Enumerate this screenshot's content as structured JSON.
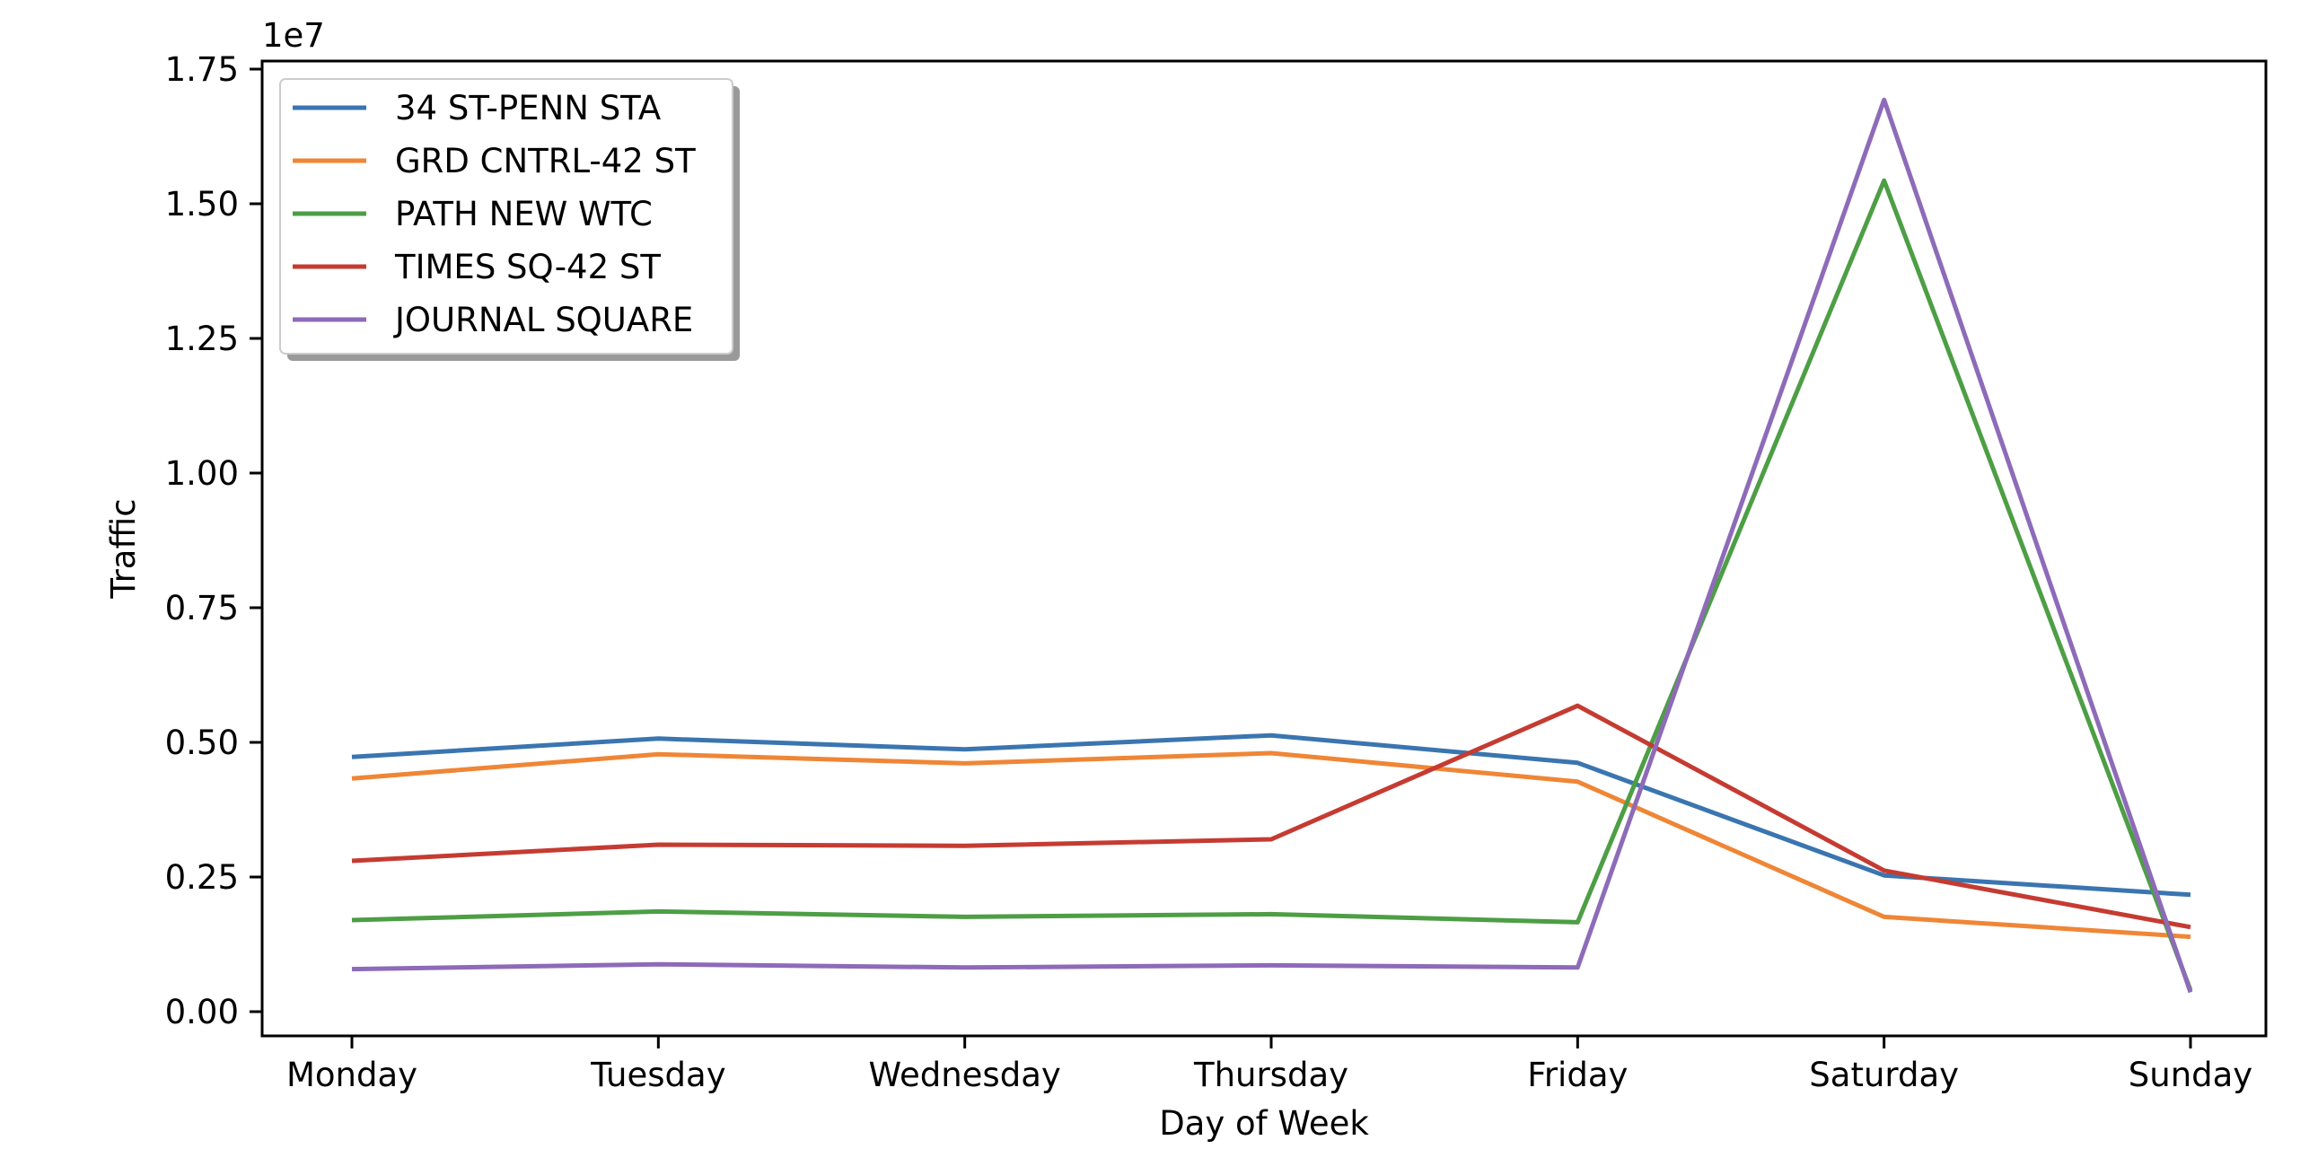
{
  "chart_data": {
    "type": "line",
    "title": "",
    "xlabel": "Day of Week",
    "ylabel": "Traffic",
    "y_offset_label": "1e7",
    "categories": [
      "Monday",
      "Tuesday",
      "Wednesday",
      "Thursday",
      "Friday",
      "Saturday",
      "Sunday"
    ],
    "ylim": [
      -0.45,
      17.65
    ],
    "y_ticks": [
      0,
      2.5,
      5,
      7.5,
      10,
      12.5,
      15,
      17.5
    ],
    "y_tick_labels": [
      "0.00",
      "0.25",
      "0.50",
      "0.75",
      "1.00",
      "1.25",
      "1.50",
      "1.75"
    ],
    "y_units_note": "values in units of 1e6 (axis tick labels scaled by 1e7)",
    "grid": false,
    "legend_placement": "top-left",
    "series": [
      {
        "name": "34 ST-PENN STA",
        "color": "#3a75b0",
        "values": [
          4.73,
          5.07,
          4.87,
          5.13,
          4.62,
          2.53,
          2.17
        ]
      },
      {
        "name": "GRD CNTRL-42 ST",
        "color": "#ef8636",
        "values": [
          4.33,
          4.78,
          4.61,
          4.8,
          4.27,
          1.76,
          1.39
        ]
      },
      {
        "name": "PATH NEW WTC",
        "color": "#4d9e45",
        "values": [
          1.7,
          1.86,
          1.76,
          1.81,
          1.66,
          15.43,
          0.4
        ]
      },
      {
        "name": "TIMES SQ-42 ST",
        "color": "#c53b32",
        "values": [
          2.8,
          3.1,
          3.08,
          3.2,
          5.68,
          2.62,
          1.57
        ]
      },
      {
        "name": "JOURNAL SQUARE",
        "color": "#8d6bb8",
        "values": [
          0.79,
          0.88,
          0.82,
          0.86,
          0.82,
          16.93,
          0.36
        ]
      }
    ]
  }
}
